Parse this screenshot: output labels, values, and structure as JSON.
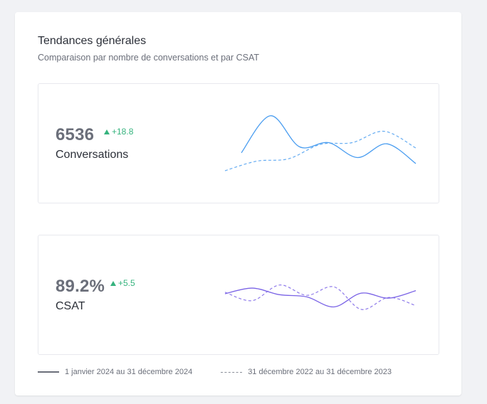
{
  "header": {
    "title": "Tendances générales",
    "subtitle": "Comparaison par nombre de conversations et par CSAT"
  },
  "metrics": [
    {
      "value": "6536",
      "delta": "+18.8",
      "label": "Conversations",
      "color": "#4a9df0"
    },
    {
      "value": "89.2%",
      "delta": "+5.5",
      "label": "CSAT",
      "color": "#7a63e6"
    }
  ],
  "legend": {
    "current": "1 janvier 2024 au 31 décembre 2024",
    "previous": "31 décembre 2022 au 31 décembre 2023"
  },
  "colors": {
    "positive": "#36b37e",
    "conversations_line": "#4a9df0",
    "csat_line": "#7a63e6"
  },
  "chart_data": [
    {
      "type": "line",
      "series": [
        {
          "values": [
            0.3,
            0.92,
            0.4,
            0.47,
            0.22,
            0.45,
            0.12
          ]
        },
        {
          "values": [
            0.0,
            0.16,
            0.2,
            0.44,
            0.47,
            0.66,
            0.38
          ]
        }
      ]
    },
    {
      "type": "line",
      "series": [
        {
          "values": [
            0.5,
            0.68,
            0.47,
            0.4,
            0.08,
            0.52,
            0.36,
            0.6
          ]
        },
        {
          "values": [
            0.55,
            0.28,
            0.78,
            0.45,
            0.72,
            0.0,
            0.38,
            0.12
          ]
        }
      ]
    }
  ]
}
